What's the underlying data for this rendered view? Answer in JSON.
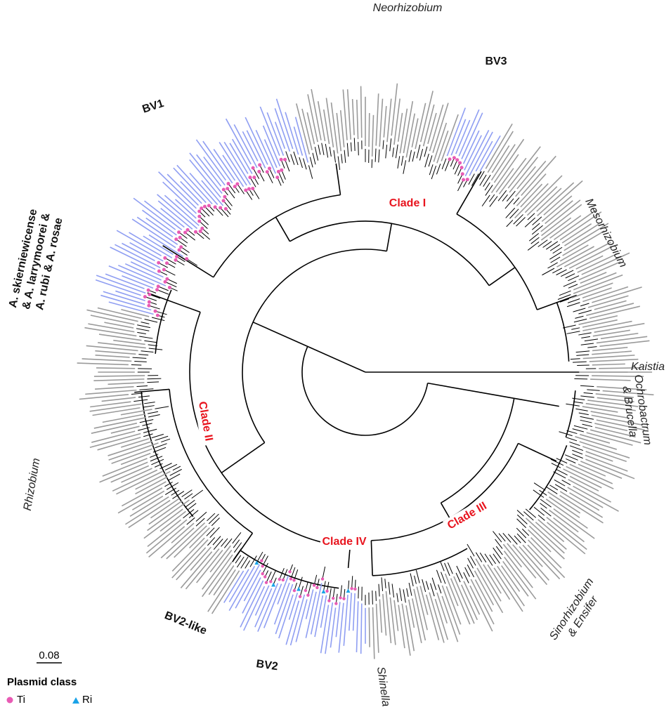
{
  "taxa": [
    {
      "lines": [
        "Neorhizobium"
      ]
    },
    {
      "lines": [
        "Mesorhizobium"
      ]
    },
    {
      "lines": [
        "Kaistia"
      ]
    },
    {
      "lines": [
        "Ochrobactrum",
        "& Brucella"
      ]
    },
    {
      "lines": [
        "Sinorhizobium",
        "& Ensifer"
      ]
    },
    {
      "lines": [
        "Shinella"
      ]
    },
    {
      "lines": [
        "Rhizobium"
      ]
    }
  ],
  "biovars": [
    {
      "lines": [
        "BV3"
      ]
    },
    {
      "lines": [
        "BV1"
      ]
    },
    {
      "lines": [
        "A. skierniewicense",
        "& A. larrymoorei &",
        "A. rubi & A. rosae"
      ]
    },
    {
      "lines": [
        "BV2-like"
      ]
    },
    {
      "lines": [
        "BV2"
      ]
    }
  ],
  "clades": [
    "Clade I",
    "Clade II",
    "Clade III",
    "Clade IV"
  ],
  "scale_bar": "0.08",
  "legend": {
    "title": "Plasmid class",
    "items": [
      "Ti",
      "Ri"
    ]
  }
}
